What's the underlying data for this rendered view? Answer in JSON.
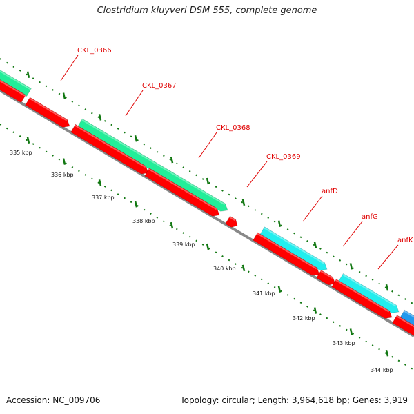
{
  "title": "Clostridium kluyveri DSM 555, complete genome",
  "footer": {
    "accession": "Accession: NC_009706",
    "summary": "Topology: circular; Length: 3,964,618 bp; Genes: 3,919"
  },
  "colors": {
    "cds": "#ff0000",
    "forward_green": "#22ee99",
    "forward_cyan": "#22eeee",
    "forward_blue": "#2299ee",
    "backbone": "#888888",
    "label_line": "#e00000",
    "tick": "#117711"
  },
  "gene_labels": [
    "CKL_0366",
    "CKL_0367",
    "CKL_0368",
    "CKL_0369",
    "anfD",
    "anfG",
    "anfK"
  ],
  "scale_labels": [
    "335 kbp",
    "336 kbp",
    "337 kbp",
    "338 kbp",
    "339 kbp",
    "340 kbp",
    "341 kbp",
    "342 kbp",
    "343 kbp",
    "344 kbp"
  ]
}
